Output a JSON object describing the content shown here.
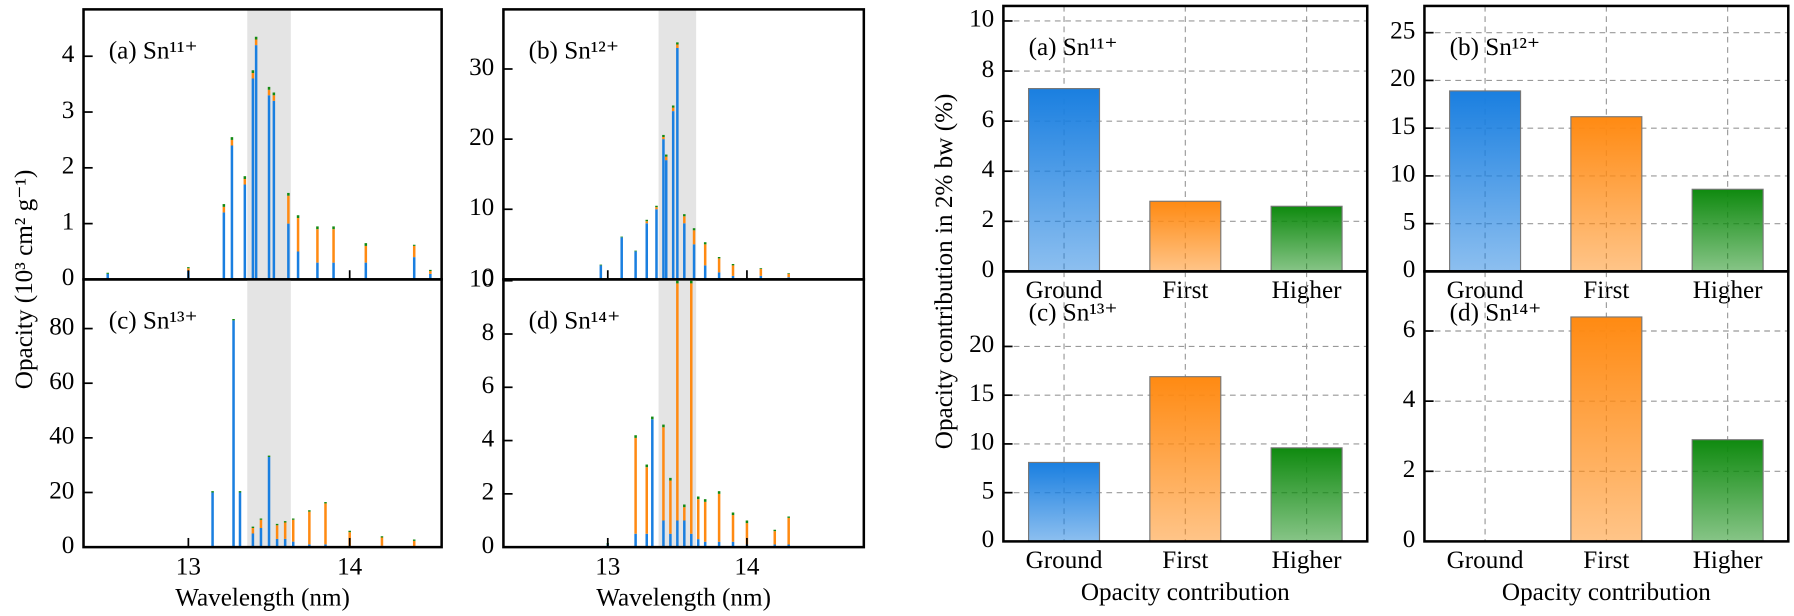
{
  "chart_data": [
    {
      "type": "stem",
      "label": "(a) Sn¹¹⁺",
      "ylabel": "Opacity (10³ cm² g⁻¹)",
      "xlim": [
        12.35,
        14.57
      ],
      "xticks": [
        13,
        14
      ],
      "ylim": [
        0,
        4.84
      ],
      "yticks": [
        0,
        1,
        2,
        3,
        4
      ],
      "highlight": [
        13.365,
        13.635
      ],
      "highlight_color": "#e4e4e4",
      "x": [
        12.5,
        13.0,
        13.22,
        13.27,
        13.35,
        13.4,
        13.42,
        13.5,
        13.53,
        13.62,
        13.68,
        13.8,
        13.9,
        14.1,
        14.4,
        14.5
      ],
      "series": [
        {
          "color": "#1a7fe0",
          "values": [
            0.1,
            0.15,
            1.2,
            2.4,
            1.7,
            3.6,
            4.2,
            3.3,
            3.2,
            1.0,
            0.5,
            0.3,
            0.3,
            0.3,
            0.4,
            0.1
          ]
        },
        {
          "color": "#ff8a12",
          "values": [
            0,
            0.05,
            0.1,
            0.1,
            0.1,
            0.1,
            0.1,
            0.1,
            0.1,
            0.5,
            0.6,
            0.6,
            0.6,
            0.3,
            0.2,
            0.05
          ]
        },
        {
          "color": "#138a13",
          "values": [
            0.02,
            0.02,
            0.05,
            0.05,
            0.05,
            0.05,
            0.05,
            0.05,
            0.05,
            0.05,
            0.05,
            0.05,
            0.05,
            0.05,
            0.02,
            0.02
          ]
        }
      ]
    },
    {
      "type": "stem",
      "label": "(b) Sn¹²⁺",
      "xlim": [
        12.25,
        14.84
      ],
      "xticks": [
        13,
        14
      ],
      "ylim": [
        0,
        38.5
      ],
      "yticks": [
        0,
        10,
        20,
        30
      ],
      "highlight": [
        13.365,
        13.635
      ],
      "highlight_color": "#e4e4e4",
      "x": [
        12.95,
        13.1,
        13.2,
        13.28,
        13.35,
        13.4,
        13.42,
        13.47,
        13.5,
        13.55,
        13.62,
        13.7,
        13.8,
        13.9,
        14.1,
        14.3
      ],
      "series": [
        {
          "color": "#1a7fe0",
          "values": [
            2,
            6,
            4,
            8,
            10,
            20,
            17,
            24,
            33,
            8,
            5,
            2,
            1,
            0.5,
            0.5,
            0.3
          ]
        },
        {
          "color": "#ff8a12",
          "values": [
            0,
            0,
            0,
            0.3,
            0.3,
            0.3,
            0.5,
            0.5,
            0.5,
            1,
            2,
            3,
            2,
            1.5,
            1,
            0.5
          ]
        },
        {
          "color": "#138a13",
          "values": [
            0.1,
            0.1,
            0.1,
            0.2,
            0.2,
            0.3,
            0.3,
            0.3,
            0.3,
            0.3,
            0.3,
            0.3,
            0.2,
            0.2,
            0.1,
            0.1
          ]
        }
      ]
    },
    {
      "type": "stem",
      "label": "(c) Sn¹³⁺",
      "xlabel": "Wavelength (nm)",
      "xlim": [
        12.35,
        14.57
      ],
      "xticks": [
        13,
        14
      ],
      "ylim": [
        0,
        98
      ],
      "yticks": [
        0,
        20,
        40,
        60,
        80
      ],
      "highlight": [
        13.365,
        13.635
      ],
      "highlight_color": "#e4e4e4",
      "x": [
        13.15,
        13.28,
        13.32,
        13.4,
        13.45,
        13.5,
        13.55,
        13.6,
        13.65,
        13.75,
        13.85,
        14.0,
        14.2,
        14.4
      ],
      "series": [
        {
          "color": "#1a7fe0",
          "values": [
            20,
            83,
            20,
            5,
            7,
            33,
            3,
            3,
            2,
            1,
            1,
            0.5,
            0.5,
            0.3
          ]
        },
        {
          "color": "#ff8a12",
          "values": [
            0,
            0,
            0,
            2,
            3,
            0,
            5,
            6,
            8,
            12,
            15,
            5,
            3,
            2
          ]
        },
        {
          "color": "#138a13",
          "values": [
            0.5,
            0.5,
            0.5,
            0.5,
            0.5,
            0.5,
            0.5,
            0.5,
            0.5,
            0.5,
            0.5,
            0.5,
            0.5,
            0.5
          ]
        }
      ]
    },
    {
      "type": "stem",
      "label": "(d) Sn¹⁴⁺",
      "xlabel": "Wavelength (nm)",
      "xlim": [
        12.25,
        14.84
      ],
      "xticks": [
        13,
        14
      ],
      "ylim": [
        0,
        10.05
      ],
      "yticks": [
        0,
        2,
        4,
        6,
        8,
        10
      ],
      "highlight": [
        13.365,
        13.635
      ],
      "highlight_color": "#e4e4e4",
      "x": [
        13.0,
        13.2,
        13.28,
        13.32,
        13.4,
        13.45,
        13.5,
        13.55,
        13.6,
        13.65,
        13.7,
        13.8,
        13.9,
        14.0,
        14.2,
        14.3
      ],
      "series": [
        {
          "color": "#1a7fe0",
          "values": [
            0.1,
            0.5,
            0.5,
            4.8,
            1,
            0.5,
            1,
            1,
            0.5,
            0.3,
            0.2,
            0.2,
            0.2,
            0.1,
            0.1,
            0.1
          ]
        },
        {
          "color": "#ff8a12",
          "values": [
            0,
            3.6,
            2.5,
            0,
            3.5,
            2,
            8.9,
            0.5,
            9.4,
            1.5,
            1.5,
            1.8,
            1,
            0.8,
            0.5,
            1
          ]
        },
        {
          "color": "#138a13",
          "values": [
            0.05,
            0.1,
            0.1,
            0.1,
            0.1,
            0.1,
            0.1,
            0.1,
            0.1,
            0.1,
            0.1,
            0.1,
            0.1,
            0.1,
            0.05,
            0.05
          ]
        }
      ]
    },
    {
      "type": "bar",
      "label": "(a) Sn¹¹⁺",
      "ylabel": "Opacity contribution in 2% bw (%)",
      "categories": [
        "Ground",
        "First",
        "Higher"
      ],
      "values": [
        7.3,
        2.8,
        2.6
      ],
      "colors": [
        "#1a7fe0",
        "#ff8a12",
        "#0f8a0f"
      ],
      "ylim": [
        0,
        10.6
      ],
      "yticks": [
        0,
        2,
        4,
        6,
        8,
        10
      ],
      "grid": true
    },
    {
      "type": "bar",
      "label": "(b) Sn¹²⁺",
      "categories": [
        "Ground",
        "First",
        "Higher"
      ],
      "values": [
        18.9,
        16.2,
        8.6
      ],
      "colors": [
        "#1a7fe0",
        "#ff8a12",
        "#0f8a0f"
      ],
      "ylim": [
        0,
        27.8
      ],
      "yticks": [
        0,
        5,
        10,
        15,
        20,
        25
      ],
      "grid": true
    },
    {
      "type": "bar",
      "label": "(c) Sn¹³⁺",
      "xlabel": "Opacity contribution",
      "categories": [
        "Ground",
        "First",
        "Higher"
      ],
      "values": [
        8.1,
        16.9,
        9.6
      ],
      "colors": [
        "#1a7fe0",
        "#ff8a12",
        "#0f8a0f"
      ],
      "ylim": [
        0,
        27.7
      ],
      "yticks": [
        0,
        5,
        10,
        15,
        20
      ],
      "grid": true
    },
    {
      "type": "bar",
      "label": "(d) Sn¹⁴⁺",
      "xlabel": "Opacity contribution",
      "categories": [
        "Ground",
        "First",
        "Higher"
      ],
      "values": [
        0,
        6.4,
        2.9
      ],
      "colors": [
        "#1a7fe0",
        "#ff8a12",
        "#0f8a0f"
      ],
      "ylim": [
        0,
        7.7
      ],
      "yticks": [
        0,
        2,
        4,
        6
      ],
      "grid": true
    }
  ]
}
